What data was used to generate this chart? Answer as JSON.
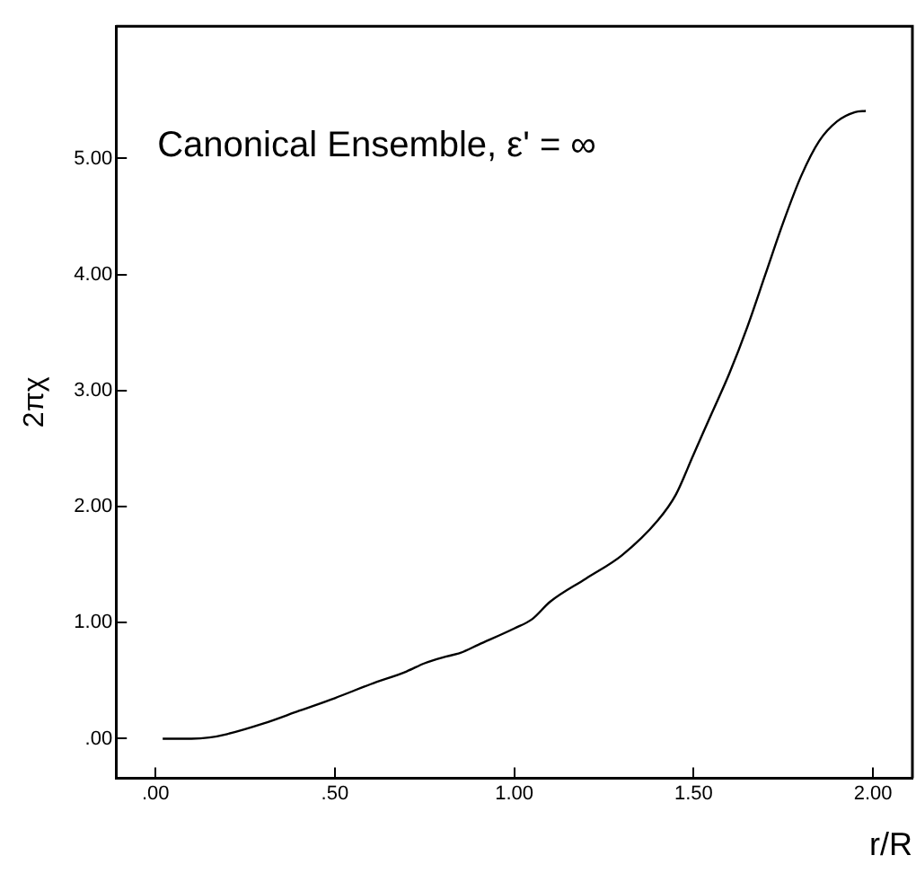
{
  "chart_data": {
    "type": "line",
    "xlabel": "r/R",
    "ylabel": "2πχ",
    "annotations": [
      "Canonical Ensemble, ε' = ∞"
    ],
    "series": [
      {
        "color": "#000000",
        "x": [
          0.02,
          0.1,
          0.15,
          0.2,
          0.3,
          0.4,
          0.5,
          0.6,
          0.7,
          0.75,
          0.8,
          0.85,
          0.9,
          1.0,
          1.05,
          1.1,
          1.2,
          1.3,
          1.4,
          1.45,
          1.5,
          1.55,
          1.6,
          1.65,
          1.7,
          1.75,
          1.8,
          1.85,
          1.9,
          1.95,
          1.98
        ],
        "values": [
          0,
          0,
          0.01,
          0.04,
          0.13,
          0.24,
          0.35,
          0.47,
          0.58,
          0.65,
          0.7,
          0.74,
          0.81,
          0.95,
          1.03,
          1.18,
          1.38,
          1.58,
          1.88,
          2.1,
          2.45,
          2.8,
          3.15,
          3.55,
          4.0,
          4.45,
          4.85,
          5.15,
          5.32,
          5.4,
          5.41
        ]
      }
    ],
    "xlim": [
      -0.11,
      2.11
    ],
    "ylim": [
      -0.34,
      6.14
    ],
    "xticks": [
      {
        "value": 0,
        "label": ".00"
      },
      {
        "value": 0.5,
        "label": ".50"
      },
      {
        "value": 1,
        "label": "1.00"
      },
      {
        "value": 1.5,
        "label": "1.50"
      },
      {
        "value": 2,
        "label": "2.00"
      }
    ],
    "yticks": [
      {
        "value": 0,
        "label": ".00"
      },
      {
        "value": 1,
        "label": "1.00"
      },
      {
        "value": 2,
        "label": "2.00"
      },
      {
        "value": 3,
        "label": "3.00"
      },
      {
        "value": 4,
        "label": "4.00"
      },
      {
        "value": 5,
        "label": "5.00"
      }
    ],
    "grid": false,
    "legend": false,
    "marker": "none",
    "line_style": "solid"
  }
}
